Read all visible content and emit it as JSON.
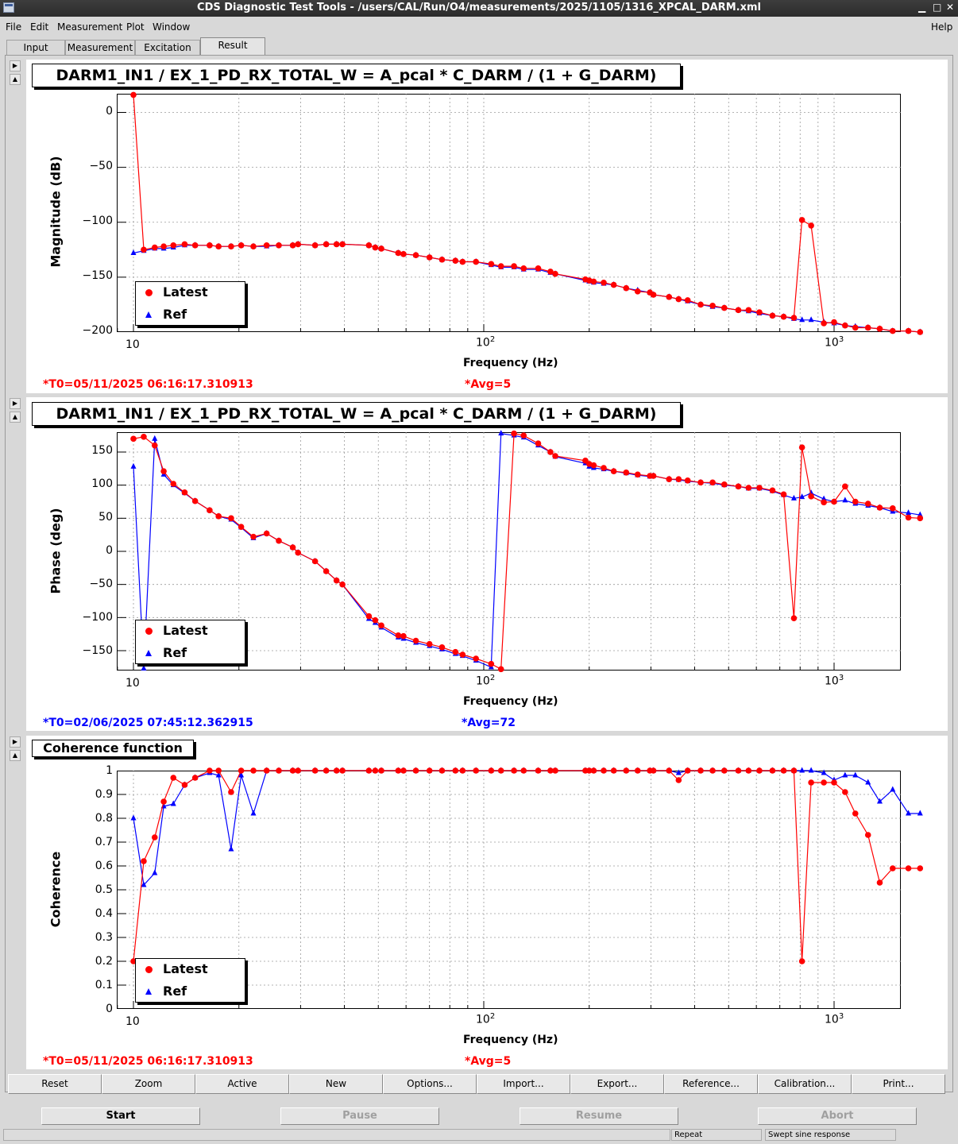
{
  "window": {
    "title": "CDS Diagnostic Test Tools - /users/CAL/Run/O4/measurements/2025/1105/1316_XPCAL_DARM.xml",
    "controls": {
      "minimize": "▁",
      "maximize": "□",
      "close": "✕"
    }
  },
  "menu": {
    "file": "File",
    "edit": "Edit",
    "measurement": "Measurement",
    "plot": "Plot",
    "window": "Window",
    "help": "Help"
  },
  "tabs": [
    "Input",
    "Measurement",
    "Excitation",
    "Result"
  ],
  "active_tab": "Result",
  "legend": {
    "latest": "Latest",
    "ref": "Ref"
  },
  "colors": {
    "latest": "#ff0000",
    "ref": "#0000ff"
  },
  "x_ticks": {
    "t10": "10",
    "t100_base": "10",
    "t100_exp": "2",
    "t1000_base": "10",
    "t1000_exp": "3"
  },
  "plots": [
    {
      "title": "DARM1_IN1 / EX_1_PD_RX_TOTAL_W = A_pcal * C_DARM / (1 + G_DARM)",
      "ylabel": "Magnitude (dB)",
      "xlabel": "Frequency (Hz)",
      "yticks": [
        "0",
        "−50",
        "−100",
        "−150",
        "−200"
      ],
      "t0": "*T0=05/11/2025 06:16:17.310913",
      "avg": "*Avg=5"
    },
    {
      "title": "DARM1_IN1 / EX_1_PD_RX_TOTAL_W = A_pcal * C_DARM / (1 + G_DARM)",
      "ylabel": "Phase (deg)",
      "xlabel": "Frequency (Hz)",
      "yticks": [
        "150",
        "100",
        "50",
        "0",
        "−50",
        "−100",
        "−150"
      ],
      "t0": "*T0=02/06/2025 07:45:12.362915",
      "avg": "*Avg=72"
    },
    {
      "title": "Coherence function",
      "ylabel": "Coherence",
      "xlabel": "Frequency (Hz)",
      "yticks": [
        "1",
        "0.9",
        "0.8",
        "0.7",
        "0.6",
        "0.5",
        "0.4",
        "0.3",
        "0.2",
        "0.1",
        "0"
      ],
      "t0": "*T0=05/11/2025 06:16:17.310913",
      "avg": "*Avg=5"
    }
  ],
  "toolbar": [
    "Reset",
    "Zoom",
    "Active",
    "New",
    "Options...",
    "Import...",
    "Export...",
    "Reference...",
    "Calibration...",
    "Print..."
  ],
  "controls": {
    "start": "Start",
    "pause": "Pause",
    "resume": "Resume",
    "abort": "Abort"
  },
  "status": {
    "repeat": "Repeat",
    "mode": "Swept sine response"
  },
  "chart_data": [
    {
      "type": "line",
      "ylabel": "Magnitude (dB)",
      "xlabel": "Frequency (Hz)",
      "xscale": "log",
      "xlim": [
        8.8,
        1950
      ],
      "ylim": [
        -200,
        17
      ],
      "grid": true,
      "legend_position": "bottom-left",
      "series": [
        {
          "name": "Latest",
          "x": [
            10,
            10.7,
            11.5,
            12.2,
            13,
            14,
            15,
            16.5,
            17.5,
            19,
            20.3,
            22,
            24,
            26,
            28.5,
            29.5,
            33,
            35.5,
            38,
            39.5,
            47,
            49,
            51,
            57,
            59,
            64,
            70,
            76,
            83,
            87,
            95,
            105,
            112,
            122,
            130,
            143,
            155,
            160,
            195,
            200,
            206,
            220,
            235,
            255,
            275,
            298,
            305,
            338,
            360,
            382,
            416,
            450,
            486,
            533,
            570,
            612,
            667,
            718,
            768,
            810,
            860,
            935,
            1000,
            1075,
            1150,
            1250,
            1350,
            1470,
            1630,
            1760
          ],
          "y": [
            16,
            -125,
            -123,
            -122,
            -121,
            -120,
            -121,
            -121,
            -122,
            -122,
            -121,
            -122,
            -121,
            -121,
            -121,
            -120,
            -121,
            -120,
            -120,
            -120,
            -121,
            -123,
            -124,
            -128,
            -129,
            -130,
            -132,
            -134,
            -135,
            -136,
            -136,
            -138,
            -140,
            -140,
            -142,
            -142,
            -145,
            -147,
            -152,
            -153,
            -154,
            -155,
            -157,
            -160,
            -163,
            -164,
            -166,
            -168,
            -170,
            -171,
            -175,
            -176,
            -178,
            -180,
            -180,
            -182,
            -185,
            -186,
            -187,
            -98,
            -103,
            -192,
            -191,
            -194,
            -196,
            -196,
            -197,
            -199,
            -199,
            -200
          ]
        },
        {
          "name": "Ref",
          "x": [
            10,
            10.7,
            11.5,
            12.2,
            13,
            14,
            15,
            16.5,
            17.5,
            19,
            20.3,
            22,
            24,
            26,
            28.5,
            29.5,
            33,
            35.5,
            38,
            39.5,
            47,
            49,
            51,
            57,
            59,
            64,
            70,
            76,
            83,
            87,
            95,
            105,
            112,
            122,
            130,
            143,
            155,
            160,
            195,
            200,
            206,
            220,
            235,
            255,
            275,
            298,
            305,
            338,
            360,
            382,
            416,
            450,
            486,
            533,
            570,
            612,
            667,
            718,
            768,
            810,
            860,
            935,
            1000,
            1075,
            1150,
            1250,
            1350,
            1470,
            1630,
            1760
          ],
          "y": [
            -128,
            -126,
            -124,
            -124,
            -123,
            -121,
            -121,
            -121,
            -122,
            -122,
            -121,
            -122,
            -122,
            -121,
            -121,
            -120,
            -121,
            -120,
            -120,
            -120,
            -121,
            -123,
            -124,
            -128,
            -129,
            -130,
            -132,
            -134,
            -135,
            -136,
            -136,
            -139,
            -141,
            -141,
            -143,
            -143,
            -146,
            -147,
            -153,
            -154,
            -155,
            -156,
            -157,
            -160,
            -162,
            -164,
            -166,
            -168,
            -170,
            -172,
            -175,
            -177,
            -178,
            -180,
            -181,
            -183,
            -185,
            -186,
            -188,
            -189,
            -189,
            -191,
            -192,
            -194,
            -195,
            -196,
            -197,
            -199,
            -199,
            -200
          ]
        }
      ]
    },
    {
      "type": "line",
      "ylabel": "Phase (deg)",
      "xlabel": "Frequency (Hz)",
      "xscale": "log",
      "xlim": [
        8.8,
        1950
      ],
      "ylim": [
        -180,
        180
      ],
      "grid": true,
      "legend_position": "bottom-left",
      "series": [
        {
          "name": "Latest",
          "x": [
            10,
            10.7,
            11.5,
            12.2,
            13,
            14,
            15,
            16.5,
            17.5,
            19,
            20.3,
            22,
            24,
            26,
            28.5,
            29.5,
            33,
            35.5,
            38,
            39.5,
            47,
            49,
            51,
            57,
            59,
            64,
            70,
            76,
            83,
            87,
            95,
            105,
            112,
            122,
            130,
            143,
            155,
            160,
            195,
            200,
            206,
            220,
            235,
            255,
            275,
            298,
            305,
            338,
            360,
            382,
            416,
            450,
            486,
            533,
            570,
            612,
            667,
            718,
            768,
            810,
            860,
            935,
            1000,
            1075,
            1150,
            1250,
            1350,
            1470,
            1630,
            1760
          ],
          "y": [
            170,
            173,
            160,
            121,
            102,
            89,
            76,
            62,
            53,
            50,
            37,
            22,
            27,
            16,
            6,
            -2,
            -15,
            -30,
            -44,
            -50,
            -98,
            -104,
            -112,
            -127,
            -128,
            -135,
            -140,
            -145,
            -152,
            -156,
            -162,
            -170,
            -178,
            178,
            175,
            163,
            150,
            144,
            137,
            132,
            130,
            126,
            121,
            119,
            116,
            114,
            114,
            109,
            109,
            107,
            104,
            104,
            101,
            98,
            96,
            96,
            92,
            86,
            -101,
            157,
            83,
            74,
            75,
            98,
            75,
            72,
            66,
            65,
            51,
            50
          ]
        },
        {
          "name": "Ref",
          "x": [
            10,
            10.7,
            11.5,
            12.2,
            13,
            14,
            15,
            16.5,
            17.5,
            19,
            20.3,
            22,
            24,
            26,
            28.5,
            29.5,
            33,
            35.5,
            38,
            39.5,
            47,
            49,
            51,
            57,
            59,
            64,
            70,
            76,
            83,
            87,
            95,
            105,
            112,
            122,
            130,
            143,
            155,
            160,
            195,
            200,
            206,
            220,
            235,
            255,
            275,
            298,
            305,
            338,
            360,
            382,
            416,
            450,
            486,
            533,
            570,
            612,
            667,
            718,
            768,
            810,
            860,
            935,
            1000,
            1075,
            1150,
            1250,
            1350,
            1470,
            1630,
            1760
          ],
          "y": [
            128,
            -177,
            170,
            116,
            100,
            88,
            76,
            62,
            53,
            48,
            36,
            20,
            27,
            16,
            6,
            -2,
            -15,
            -30,
            -44,
            -50,
            -102,
            -108,
            -115,
            -130,
            -132,
            -138,
            -143,
            -148,
            -155,
            -158,
            -165,
            -175,
            178,
            175,
            172,
            160,
            150,
            143,
            133,
            128,
            126,
            124,
            121,
            118,
            115,
            113,
            114,
            109,
            108,
            106,
            104,
            103,
            100,
            98,
            95,
            95,
            91,
            85,
            80,
            82,
            88,
            79,
            75,
            77,
            72,
            69,
            66,
            60,
            58,
            55
          ]
        }
      ]
    },
    {
      "type": "line",
      "ylabel": "Coherence",
      "xlabel": "Frequency (Hz)",
      "xscale": "log",
      "xlim": [
        8.8,
        1950
      ],
      "ylim": [
        0,
        1
      ],
      "grid": true,
      "legend_position": "bottom-left",
      "series": [
        {
          "name": "Latest",
          "x": [
            10,
            10.7,
            11.5,
            12.2,
            13,
            14,
            15,
            16.5,
            17.5,
            19,
            20.3,
            22,
            24,
            26,
            28.5,
            29.5,
            33,
            35.5,
            38,
            39.5,
            47,
            49,
            51,
            57,
            59,
            64,
            70,
            76,
            83,
            87,
            95,
            105,
            112,
            122,
            130,
            143,
            155,
            160,
            195,
            200,
            206,
            220,
            235,
            255,
            275,
            298,
            305,
            338,
            360,
            382,
            416,
            450,
            486,
            533,
            570,
            612,
            667,
            718,
            768,
            810,
            860,
            935,
            1000,
            1075,
            1150,
            1250,
            1350,
            1470,
            1630,
            1760
          ],
          "y": [
            0.2,
            0.62,
            0.72,
            0.87,
            0.97,
            0.94,
            0.97,
            1.0,
            1.0,
            0.91,
            1.0,
            1.0,
            1.0,
            1.0,
            1.0,
            1.0,
            1.0,
            1.0,
            1.0,
            1.0,
            1.0,
            1.0,
            1.0,
            1.0,
            1.0,
            1.0,
            1.0,
            1.0,
            1.0,
            1.0,
            1.0,
            1.0,
            1.0,
            1.0,
            1.0,
            1.0,
            1.0,
            1.0,
            1.0,
            1.0,
            1.0,
            1.0,
            1.0,
            1.0,
            1.0,
            1.0,
            1.0,
            1.0,
            0.96,
            1.0,
            1.0,
            1.0,
            1.0,
            1.0,
            1.0,
            1.0,
            1.0,
            1.0,
            1.0,
            0.2,
            0.95,
            0.95,
            0.95,
            0.91,
            0.82,
            0.73,
            0.53,
            0.59,
            0.59,
            0.59
          ]
        },
        {
          "name": "Ref",
          "x": [
            10,
            10.7,
            11.5,
            12.2,
            13,
            14,
            15,
            16.5,
            17.5,
            19,
            20.3,
            22,
            24,
            26,
            28.5,
            29.5,
            33,
            35.5,
            38,
            39.5,
            47,
            49,
            51,
            57,
            59,
            64,
            70,
            76,
            83,
            87,
            95,
            105,
            112,
            122,
            130,
            143,
            155,
            160,
            195,
            200,
            206,
            220,
            235,
            255,
            275,
            298,
            305,
            338,
            360,
            382,
            416,
            450,
            486,
            533,
            570,
            612,
            667,
            718,
            768,
            810,
            860,
            935,
            1000,
            1075,
            1150,
            1250,
            1350,
            1470,
            1630,
            1760
          ],
          "y": [
            0.8,
            0.52,
            0.57,
            0.85,
            0.86,
            0.94,
            0.97,
            0.99,
            0.98,
            0.67,
            0.98,
            0.82,
            1.0,
            1.0,
            1.0,
            1.0,
            1.0,
            1.0,
            1.0,
            1.0,
            1.0,
            1.0,
            1.0,
            1.0,
            1.0,
            1.0,
            1.0,
            1.0,
            1.0,
            1.0,
            1.0,
            1.0,
            1.0,
            1.0,
            1.0,
            1.0,
            1.0,
            1.0,
            1.0,
            1.0,
            1.0,
            1.0,
            1.0,
            1.0,
            1.0,
            1.0,
            1.0,
            1.0,
            0.99,
            1.0,
            1.0,
            1.0,
            1.0,
            1.0,
            1.0,
            1.0,
            1.0,
            1.0,
            1.0,
            1.0,
            1.0,
            0.99,
            0.96,
            0.98,
            0.98,
            0.95,
            0.87,
            0.92,
            0.82,
            0.82
          ]
        }
      ]
    }
  ]
}
